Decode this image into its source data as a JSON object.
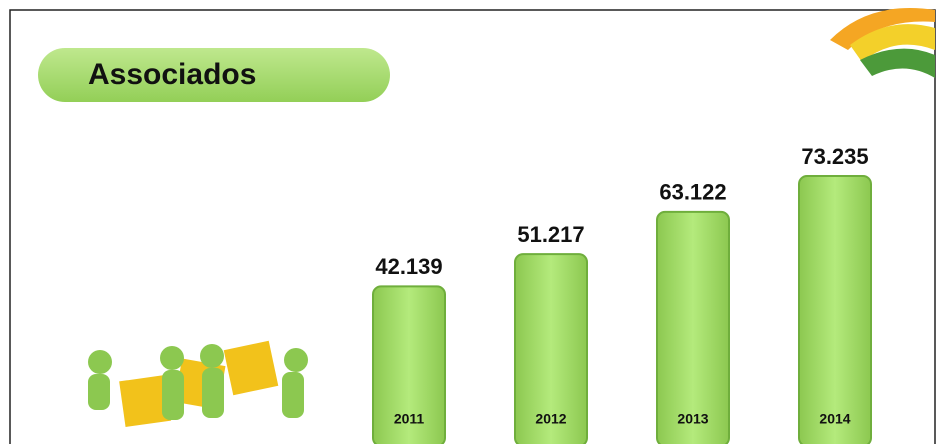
{
  "chart_data": {
    "type": "bar",
    "title": "Associados",
    "categories": [
      "2011",
      "2012",
      "2013",
      "2014"
    ],
    "values": [
      42139,
      51217,
      63122,
      73235
    ],
    "value_labels": [
      "42.139",
      "51.217",
      "63.122",
      "73.235"
    ],
    "color": "#a6e06e"
  }
}
